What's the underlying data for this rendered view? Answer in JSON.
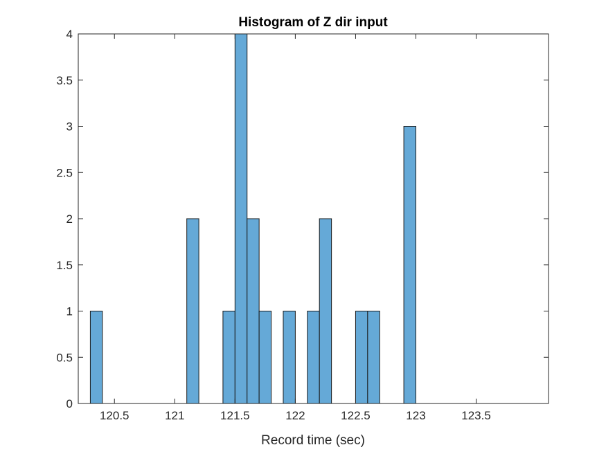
{
  "chart_data": {
    "type": "bar",
    "title": "Histogram of Z dir input",
    "xlabel": "Record time (sec)",
    "ylabel": "",
    "xlim": [
      120.2,
      124.1
    ],
    "ylim": [
      0,
      4
    ],
    "bin_width": 0.1,
    "bins": [
      {
        "x_start": 120.3,
        "count": 1
      },
      {
        "x_start": 121.1,
        "count": 2
      },
      {
        "x_start": 121.4,
        "count": 1
      },
      {
        "x_start": 121.5,
        "count": 4
      },
      {
        "x_start": 121.6,
        "count": 2
      },
      {
        "x_start": 121.7,
        "count": 1
      },
      {
        "x_start": 121.9,
        "count": 1
      },
      {
        "x_start": 122.1,
        "count": 1
      },
      {
        "x_start": 122.2,
        "count": 2
      },
      {
        "x_start": 122.5,
        "count": 1
      },
      {
        "x_start": 122.6,
        "count": 1
      },
      {
        "x_start": 122.9,
        "count": 3
      }
    ],
    "x_ticks": [
      "120.5",
      "121",
      "121.5",
      "122",
      "122.5",
      "123",
      "123.5"
    ],
    "y_ticks": [
      "0",
      "0.5",
      "1",
      "1.5",
      "2",
      "2.5",
      "3",
      "3.5",
      "4"
    ],
    "bar_color": "#65a9d7",
    "bar_edge_color": "#1a1a1a",
    "grid": false,
    "legend": "none"
  }
}
